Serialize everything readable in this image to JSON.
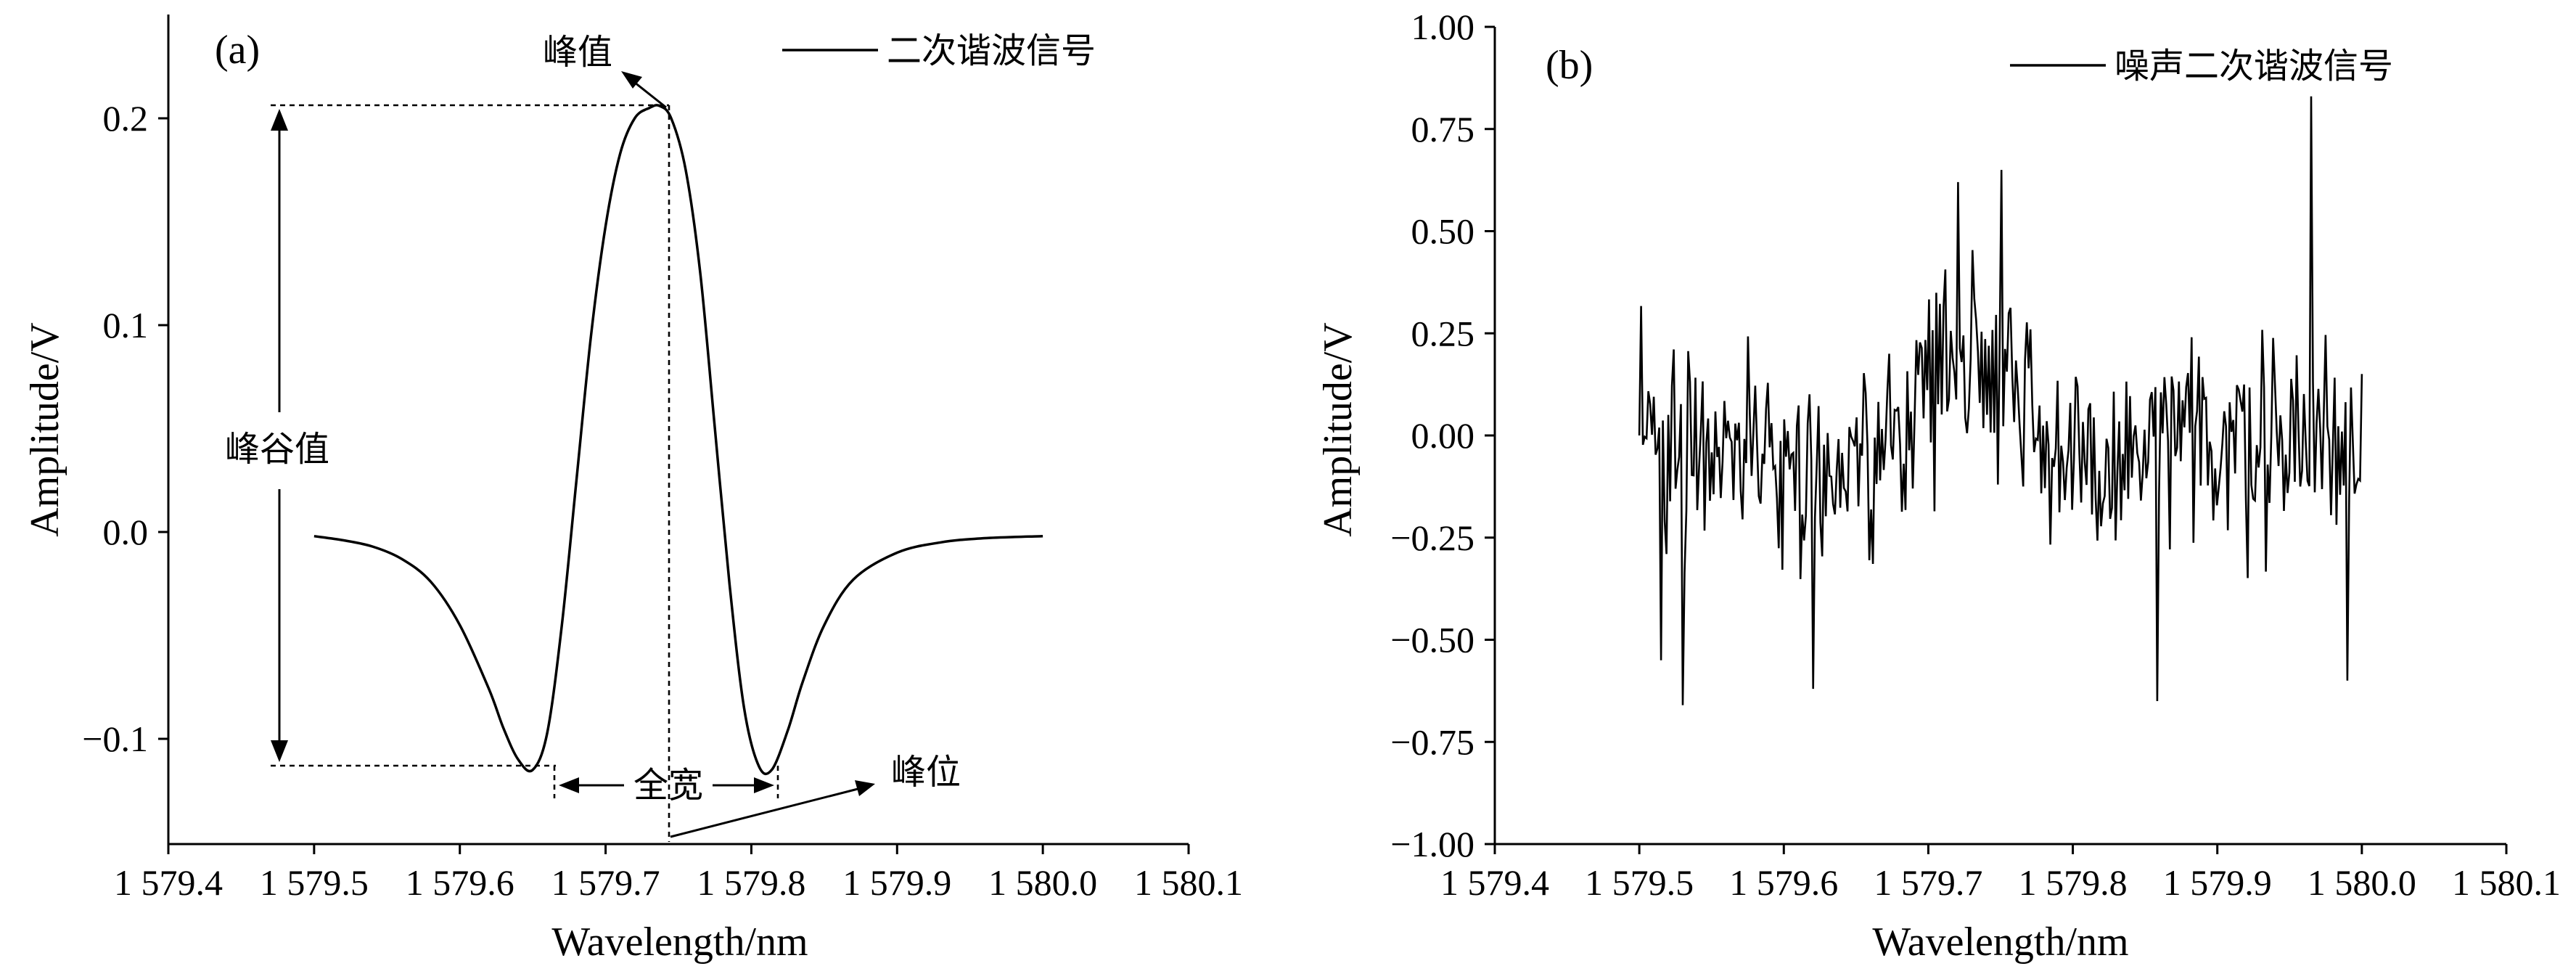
{
  "chart_data": [
    {
      "type": "line",
      "panel_label": "(a)",
      "xlabel": "Wavelength/nm",
      "ylabel": "Amplitude/V",
      "xlim": [
        1579.4,
        1580.1
      ],
      "ylim": [
        -0.15,
        0.25
      ],
      "xticks": [
        1579.4,
        1579.5,
        1579.6,
        1579.7,
        1579.8,
        1579.9,
        1580.0,
        1580.1
      ],
      "xtick_labels": [
        "1 579.4",
        "1 579.5",
        "1 579.6",
        "1 579.7",
        "1 579.8",
        "1 579.9",
        "1 580.0",
        "1 580.1"
      ],
      "yticks": [
        -0.1,
        0.0,
        0.1,
        0.2
      ],
      "ytick_labels": [
        "−0.1",
        "0.0",
        "0.1",
        "0.2"
      ],
      "grid": false,
      "legend_position": "top-right",
      "series": [
        {
          "name": "二次谐波信号",
          "x": [
            1579.5,
            1579.52,
            1579.54,
            1579.56,
            1579.58,
            1579.6,
            1579.62,
            1579.63,
            1579.64,
            1579.65,
            1579.66,
            1579.67,
            1579.68,
            1579.69,
            1579.7,
            1579.71,
            1579.72,
            1579.73,
            1579.737,
            1579.745,
            1579.755,
            1579.765,
            1579.775,
            1579.785,
            1579.795,
            1579.805,
            1579.814,
            1579.825,
            1579.835,
            1579.85,
            1579.87,
            1579.9,
            1579.93,
            1579.96,
            1580.0
          ],
          "y": [
            -0.002,
            -0.004,
            -0.007,
            -0.013,
            -0.024,
            -0.045,
            -0.076,
            -0.095,
            -0.11,
            -0.115,
            -0.097,
            -0.045,
            0.025,
            0.095,
            0.148,
            0.183,
            0.2,
            0.205,
            0.206,
            0.2,
            0.175,
            0.125,
            0.05,
            -0.025,
            -0.085,
            -0.113,
            -0.115,
            -0.096,
            -0.073,
            -0.045,
            -0.023,
            -0.01,
            -0.005,
            -0.003,
            -0.002
          ]
        }
      ],
      "annotations": [
        {
          "text": "峰值",
          "x": 1579.736,
          "y": 0.205
        },
        {
          "text": "峰谷值",
          "x": 1579.47,
          "y": 0.045
        },
        {
          "text": "全宽",
          "x_from": 1579.662,
          "x_to": 1579.815,
          "y": -0.123
        },
        {
          "text": "峰位",
          "x": 1579.736,
          "y": -0.15
        }
      ]
    },
    {
      "type": "line",
      "panel_label": "(b)",
      "xlabel": "Wavelength/nm",
      "ylabel": "Amplitude/V",
      "xlim": [
        1579.4,
        1580.1
      ],
      "ylim": [
        -1.0,
        1.0
      ],
      "xticks": [
        1579.4,
        1579.5,
        1579.6,
        1579.7,
        1579.8,
        1579.9,
        1580.0,
        1580.1
      ],
      "xtick_labels": [
        "1 579.4",
        "1 579.5",
        "1 579.6",
        "1 579.7",
        "1 579.8",
        "1 579.9",
        "1 580.0",
        "1 580.1"
      ],
      "yticks": [
        -1.0,
        -0.75,
        -0.5,
        -0.25,
        0.0,
        0.25,
        0.5,
        0.75,
        1.0
      ],
      "ytick_labels": [
        "−1.00",
        "−0.75",
        "−0.50",
        "−0.25",
        "0.00",
        "0.25",
        "0.50",
        "0.75",
        "1.00"
      ],
      "grid": false,
      "legend_position": "top-right",
      "series": [
        {
          "name": "噪声二次谐波信号",
          "x_range": [
            1579.5,
            1580.0
          ],
          "num_points": 400,
          "noise_std_approx": 0.18,
          "underlying_shape": "二次谐波信号",
          "spikes": [
            {
              "x": 1579.965,
              "y": 0.83
            },
            {
              "x": 1579.75,
              "y": 0.65
            },
            {
              "x": 1579.72,
              "y": 0.62
            },
            {
              "x": 1579.5,
              "y": 0.38
            },
            {
              "x": 1579.515,
              "y": -0.55
            },
            {
              "x": 1579.53,
              "y": -0.66
            },
            {
              "x": 1579.62,
              "y": -0.62
            },
            {
              "x": 1579.858,
              "y": -0.65
            },
            {
              "x": 1579.99,
              "y": -0.6
            }
          ]
        }
      ]
    }
  ]
}
